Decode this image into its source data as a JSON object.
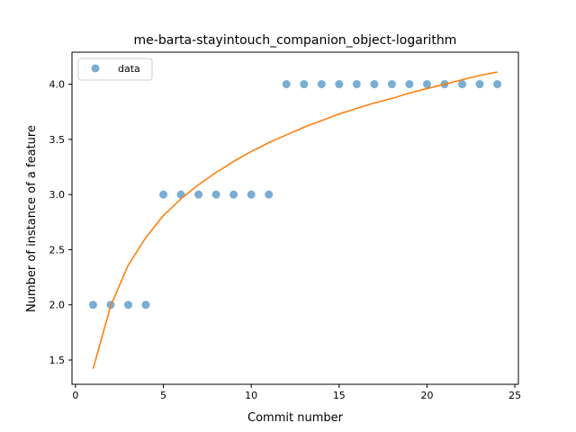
{
  "chart_data": {
    "type": "scatter",
    "title": "me-barta-stayintouch_companion_object-logarithm",
    "xlabel": "Commit number",
    "ylabel": "Number of instance of a feature",
    "xlim": [
      -0.2,
      25.2
    ],
    "ylim": [
      1.28,
      4.29
    ],
    "xticks": [
      0,
      5,
      10,
      15,
      20,
      25
    ],
    "xtick_labels": [
      "0",
      "5",
      "10",
      "15",
      "20",
      "25"
    ],
    "yticks": [
      1.5,
      2.0,
      2.5,
      3.0,
      3.5,
      4.0
    ],
    "ytick_labels": [
      "1.5",
      "2.0",
      "2.5",
      "3.0",
      "3.5",
      "4.0"
    ],
    "grid": false,
    "legend_position": "top-left",
    "series": [
      {
        "name": "data",
        "kind": "scatter",
        "color": "#1f77b4",
        "x": [
          1,
          2,
          3,
          4,
          5,
          6,
          7,
          8,
          9,
          10,
          11,
          12,
          13,
          14,
          15,
          16,
          17,
          18,
          19,
          20,
          21,
          22,
          23,
          24
        ],
        "y": [
          2,
          2,
          2,
          2,
          3,
          3,
          3,
          3,
          3,
          3,
          3,
          4,
          4,
          4,
          4,
          4,
          4,
          4,
          4,
          4,
          4,
          4,
          4,
          4
        ]
      },
      {
        "kind": "line",
        "color": "#ff7f0e",
        "x": [
          1,
          2,
          3,
          4,
          5,
          6,
          7,
          8,
          9,
          10,
          11,
          12,
          13,
          14,
          15,
          16,
          17,
          18,
          19,
          20,
          21,
          22,
          23,
          24
        ],
        "y": [
          1.42,
          1.99,
          2.36,
          2.61,
          2.81,
          2.96,
          3.09,
          3.2,
          3.3,
          3.39,
          3.47,
          3.54,
          3.61,
          3.67,
          3.73,
          3.78,
          3.83,
          3.87,
          3.92,
          3.96,
          4.0,
          4.04,
          4.08,
          4.11
        ]
      }
    ]
  }
}
